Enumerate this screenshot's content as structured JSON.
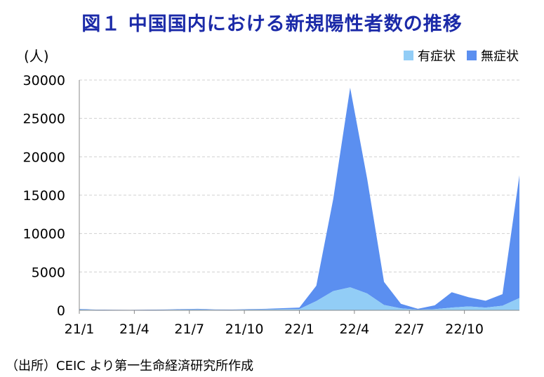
{
  "title": "図１ 中国国内における新規陽性者数の推移",
  "unit": "(人)",
  "source": "（出所）CEIC より第一生命経済研究所作成",
  "legend": [
    {
      "name": "有症状",
      "color": "#92cdf6"
    },
    {
      "name": "無症状",
      "color": "#5b8ff0"
    }
  ],
  "chart_data": {
    "type": "area",
    "stacked": true,
    "ylim": [
      0,
      30000
    ],
    "yticks": [
      0,
      5000,
      10000,
      15000,
      20000,
      25000,
      30000
    ],
    "xticks": [
      "21/1",
      "21/4",
      "21/7",
      "21/10",
      "22/1",
      "22/4",
      "22/7",
      "22/10"
    ],
    "grid": true,
    "legend_position": "top-right",
    "x": [
      "21/1",
      "21/2",
      "21/3",
      "21/4",
      "21/5",
      "21/6",
      "21/7",
      "21/8",
      "21/9",
      "21/10",
      "21/11",
      "21/12",
      "22/1",
      "22/2",
      "22/3a",
      "22/3b",
      "22/4a",
      "22/4b",
      "22/5a",
      "22/5b",
      "22/6",
      "22/7",
      "22/8",
      "22/9",
      "22/10",
      "22/11a",
      "22/11b"
    ],
    "series": [
      {
        "name": "有症状",
        "color": "#92cdf6",
        "values": [
          120,
          60,
          40,
          40,
          50,
          60,
          90,
          110,
          70,
          60,
          90,
          120,
          150,
          160,
          1200,
          2500,
          3000,
          2200,
          700,
          250,
          80,
          150,
          350,
          500,
          350,
          600,
          1600
        ]
      },
      {
        "name": "無症状",
        "color": "#5b8ff0",
        "values": [
          60,
          30,
          30,
          20,
          30,
          40,
          60,
          80,
          40,
          40,
          60,
          80,
          120,
          200,
          2000,
          12000,
          26000,
          15000,
          3000,
          600,
          120,
          500,
          2000,
          1200,
          900,
          1500,
          16000
        ]
      }
    ]
  }
}
